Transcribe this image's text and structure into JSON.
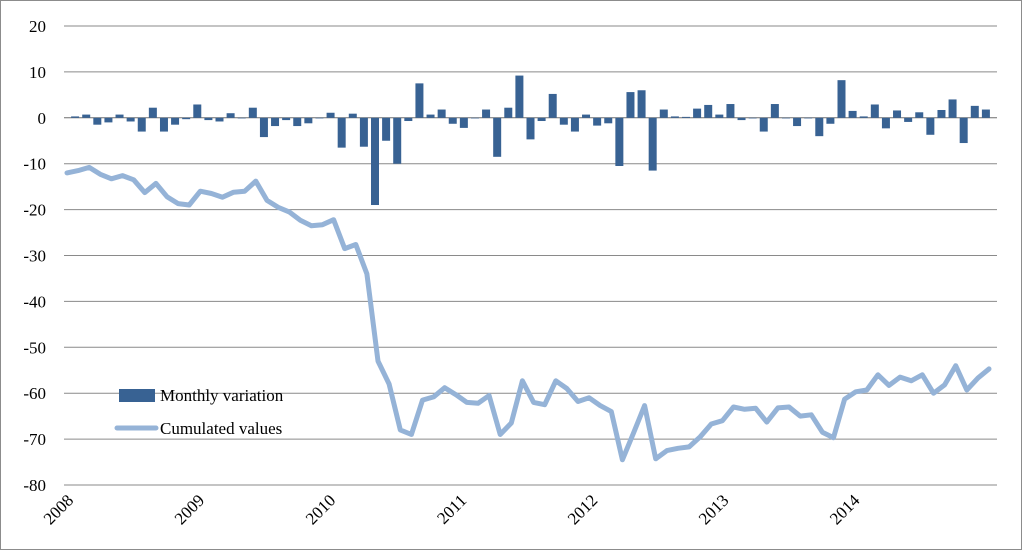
{
  "chart_data": {
    "type": "bar+line",
    "title": "",
    "xlabel": "",
    "ylabel": "",
    "ylim": [
      -80,
      20
    ],
    "yticks": [
      20,
      10,
      0,
      -10,
      -20,
      -30,
      -40,
      -50,
      -60,
      -70,
      -80
    ],
    "ytick_labels": [
      "20",
      "10",
      "0",
      "-10",
      "-20",
      "-30",
      "-40",
      "-50",
      "-60",
      "-70",
      "-80"
    ],
    "year_labels": [
      "2008",
      "2009",
      "2010",
      "2011",
      "2012",
      "2013",
      "2014"
    ],
    "grid": true,
    "legend_position": "bottom-left",
    "series": [
      {
        "name": "Monthly variation",
        "kind": "bar",
        "color": "#386293",
        "values": [
          0.3,
          0.7,
          -1.5,
          -1.0,
          0.7,
          -0.8,
          -3.0,
          2.2,
          -3.0,
          -1.5,
          -0.3,
          2.9,
          -0.5,
          -0.8,
          1.0,
          0.0,
          2.2,
          -4.2,
          -1.8,
          -0.5,
          -1.8,
          -1.2,
          0.0,
          1.1,
          -6.5,
          0.9,
          -6.3,
          -19.0,
          -5.0,
          -10.0,
          -0.7,
          7.5,
          0.7,
          1.8,
          -1.3,
          -2.2,
          0.0,
          1.8,
          -8.5,
          2.2,
          9.2,
          -4.7,
          -0.7,
          5.2,
          -1.5,
          -3.0,
          0.7,
          -1.7,
          -1.2,
          -10.5,
          5.6,
          6.0,
          -11.5,
          1.8,
          0.3,
          0.2,
          2.0,
          2.8,
          0.7,
          3.0,
          -0.5,
          0.0,
          -3.0,
          3.0,
          0.0,
          -1.8,
          0.0,
          -4.0,
          -1.3,
          8.2,
          1.5,
          0.3,
          2.9,
          -2.3,
          1.6,
          -0.9,
          1.2,
          -3.7,
          1.7,
          4.0,
          -5.5,
          2.6,
          1.8
        ]
      },
      {
        "name": "Cumulated values",
        "kind": "line",
        "color": "#95b3d7",
        "values": [
          -12.0,
          -11.5,
          -10.8,
          -12.3,
          -13.3,
          -12.6,
          -13.5,
          -16.3,
          -14.3,
          -17.2,
          -18.7,
          -19.0,
          -16.0,
          -16.5,
          -17.3,
          -16.2,
          -16.0,
          -13.8,
          -18.0,
          -19.5,
          -20.5,
          -22.3,
          -23.5,
          -23.3,
          -22.2,
          -28.5,
          -27.6,
          -34.0,
          -53.0,
          -58.0,
          -68.0,
          -69.0,
          -61.5,
          -60.8,
          -58.8,
          -60.3,
          -62.0,
          -62.2,
          -60.5,
          -69.0,
          -66.5,
          -57.3,
          -62.0,
          -62.5,
          -57.3,
          -59.0,
          -61.8,
          -61.0,
          -62.7,
          -64.0,
          -74.5,
          -68.7,
          -62.7,
          -74.3,
          -72.5,
          -72.0,
          -71.7,
          -69.5,
          -66.7,
          -66.0,
          -63.0,
          -63.5,
          -63.3,
          -66.3,
          -63.2,
          -63.0,
          -65.0,
          -64.7,
          -68.5,
          -69.7,
          -61.3,
          -59.7,
          -59.3,
          -56.0,
          -58.3,
          -56.5,
          -57.3,
          -56.0,
          -60.0,
          -58.2,
          -54.0,
          -59.3,
          -56.7,
          -54.7
        ]
      }
    ]
  },
  "legend": {
    "bar_label": "Monthly variation",
    "line_label": "Cumulated values"
  }
}
